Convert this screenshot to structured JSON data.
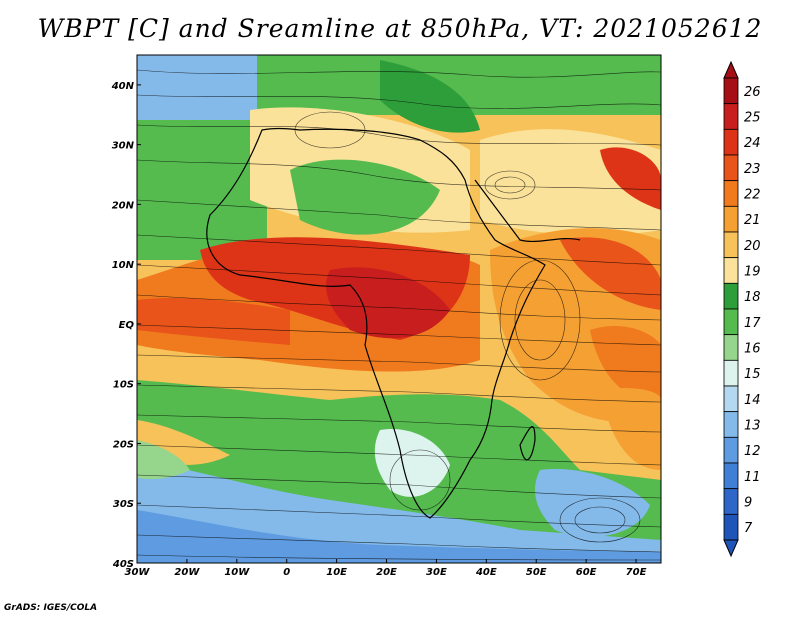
{
  "title": "WBPT [C] and Sreamline at 850hPa, VT: 2021052612",
  "credit": "GrADS: IGES/COLA",
  "map": {
    "lat_ticks": [
      "40N",
      "30N",
      "20N",
      "10N",
      "EQ",
      "10S",
      "20S",
      "30S",
      "40S"
    ],
    "lon_ticks": [
      "30W",
      "20W",
      "10W",
      "0",
      "10E",
      "20E",
      "30E",
      "40E",
      "50E",
      "60E",
      "70E"
    ],
    "lat_values": [
      40,
      30,
      20,
      10,
      0,
      -10,
      -20,
      -30,
      -40
    ],
    "lon_values": [
      -30,
      -20,
      -10,
      0,
      10,
      20,
      30,
      40,
      50,
      60,
      70
    ],
    "extent": {
      "lon": [
        -30,
        75
      ],
      "lat": [
        -40,
        45
      ]
    }
  },
  "colorbar": {
    "labels": [
      "26",
      "25",
      "24",
      "23",
      "22",
      "21",
      "20",
      "19",
      "18",
      "17",
      "16",
      "15",
      "14",
      "13",
      "12",
      "11",
      "9",
      "7"
    ],
    "colors": [
      "#a50f15",
      "#c81e1e",
      "#dd3418",
      "#e8541a",
      "#f07a1e",
      "#f5a033",
      "#f7c25a",
      "#fbe29a",
      "#2e9e3a",
      "#55bb4f",
      "#96d58c",
      "#ddf3ee",
      "#b4d8f0",
      "#84baea",
      "#5f9be0",
      "#3f7fd6",
      "#2e67c8",
      "#1f55b8"
    ]
  }
}
